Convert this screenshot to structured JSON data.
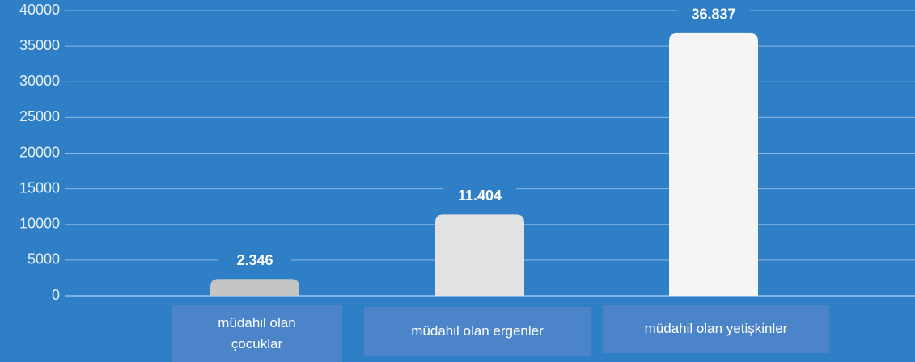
{
  "chart_data": {
    "type": "bar",
    "categories": [
      "müdahil olan çocuklar",
      "müdahil olan ergenler",
      "müdahil olan yetişkinler"
    ],
    "values": [
      2346,
      11404,
      36837
    ],
    "value_labels": [
      "2.346",
      "11.404",
      "36.837"
    ],
    "colors": [
      "#c4c4c4",
      "#e2e2e2",
      "#f4f4f4"
    ],
    "ylim": [
      0,
      40000
    ],
    "yticks": [
      0,
      5000,
      10000,
      15000,
      20000,
      25000,
      30000,
      35000,
      40000
    ],
    "grid": true
  }
}
